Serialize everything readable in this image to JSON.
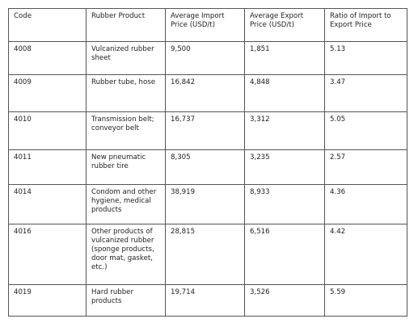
{
  "table": {
    "headers": [
      "Code",
      "Rubber Product",
      "Average Import Price (USD/t)",
      "Average Export Price (USD/t)",
      "Ratio of Import to Export Price"
    ],
    "rows": [
      [
        "4008",
        "Vulcanized rubber sheet",
        "9,500",
        "1,851",
        "5.13"
      ],
      [
        "4009",
        "Rubber tube, hose",
        "16,842",
        "4,848",
        "3.47"
      ],
      [
        "4010",
        "Transmission belt; conveyor belt",
        "16,737",
        "3,312",
        "5.05"
      ],
      [
        "4011",
        "New pneumatic rubber tire",
        "8,305",
        "3,235",
        "2.57"
      ],
      [
        "4014",
        "Condom and other hygiene, medical products",
        "38,919",
        "8,933",
        "4.36"
      ],
      [
        "4016",
        "Other products of vulcanized rubber (sponge products, door mat, gasket, etc.)",
        "28,815",
        "6,516",
        "4.42"
      ],
      [
        "4019",
        "Hard rubber products",
        "19,714",
        "3,526",
        "5.59"
      ]
    ]
  }
}
